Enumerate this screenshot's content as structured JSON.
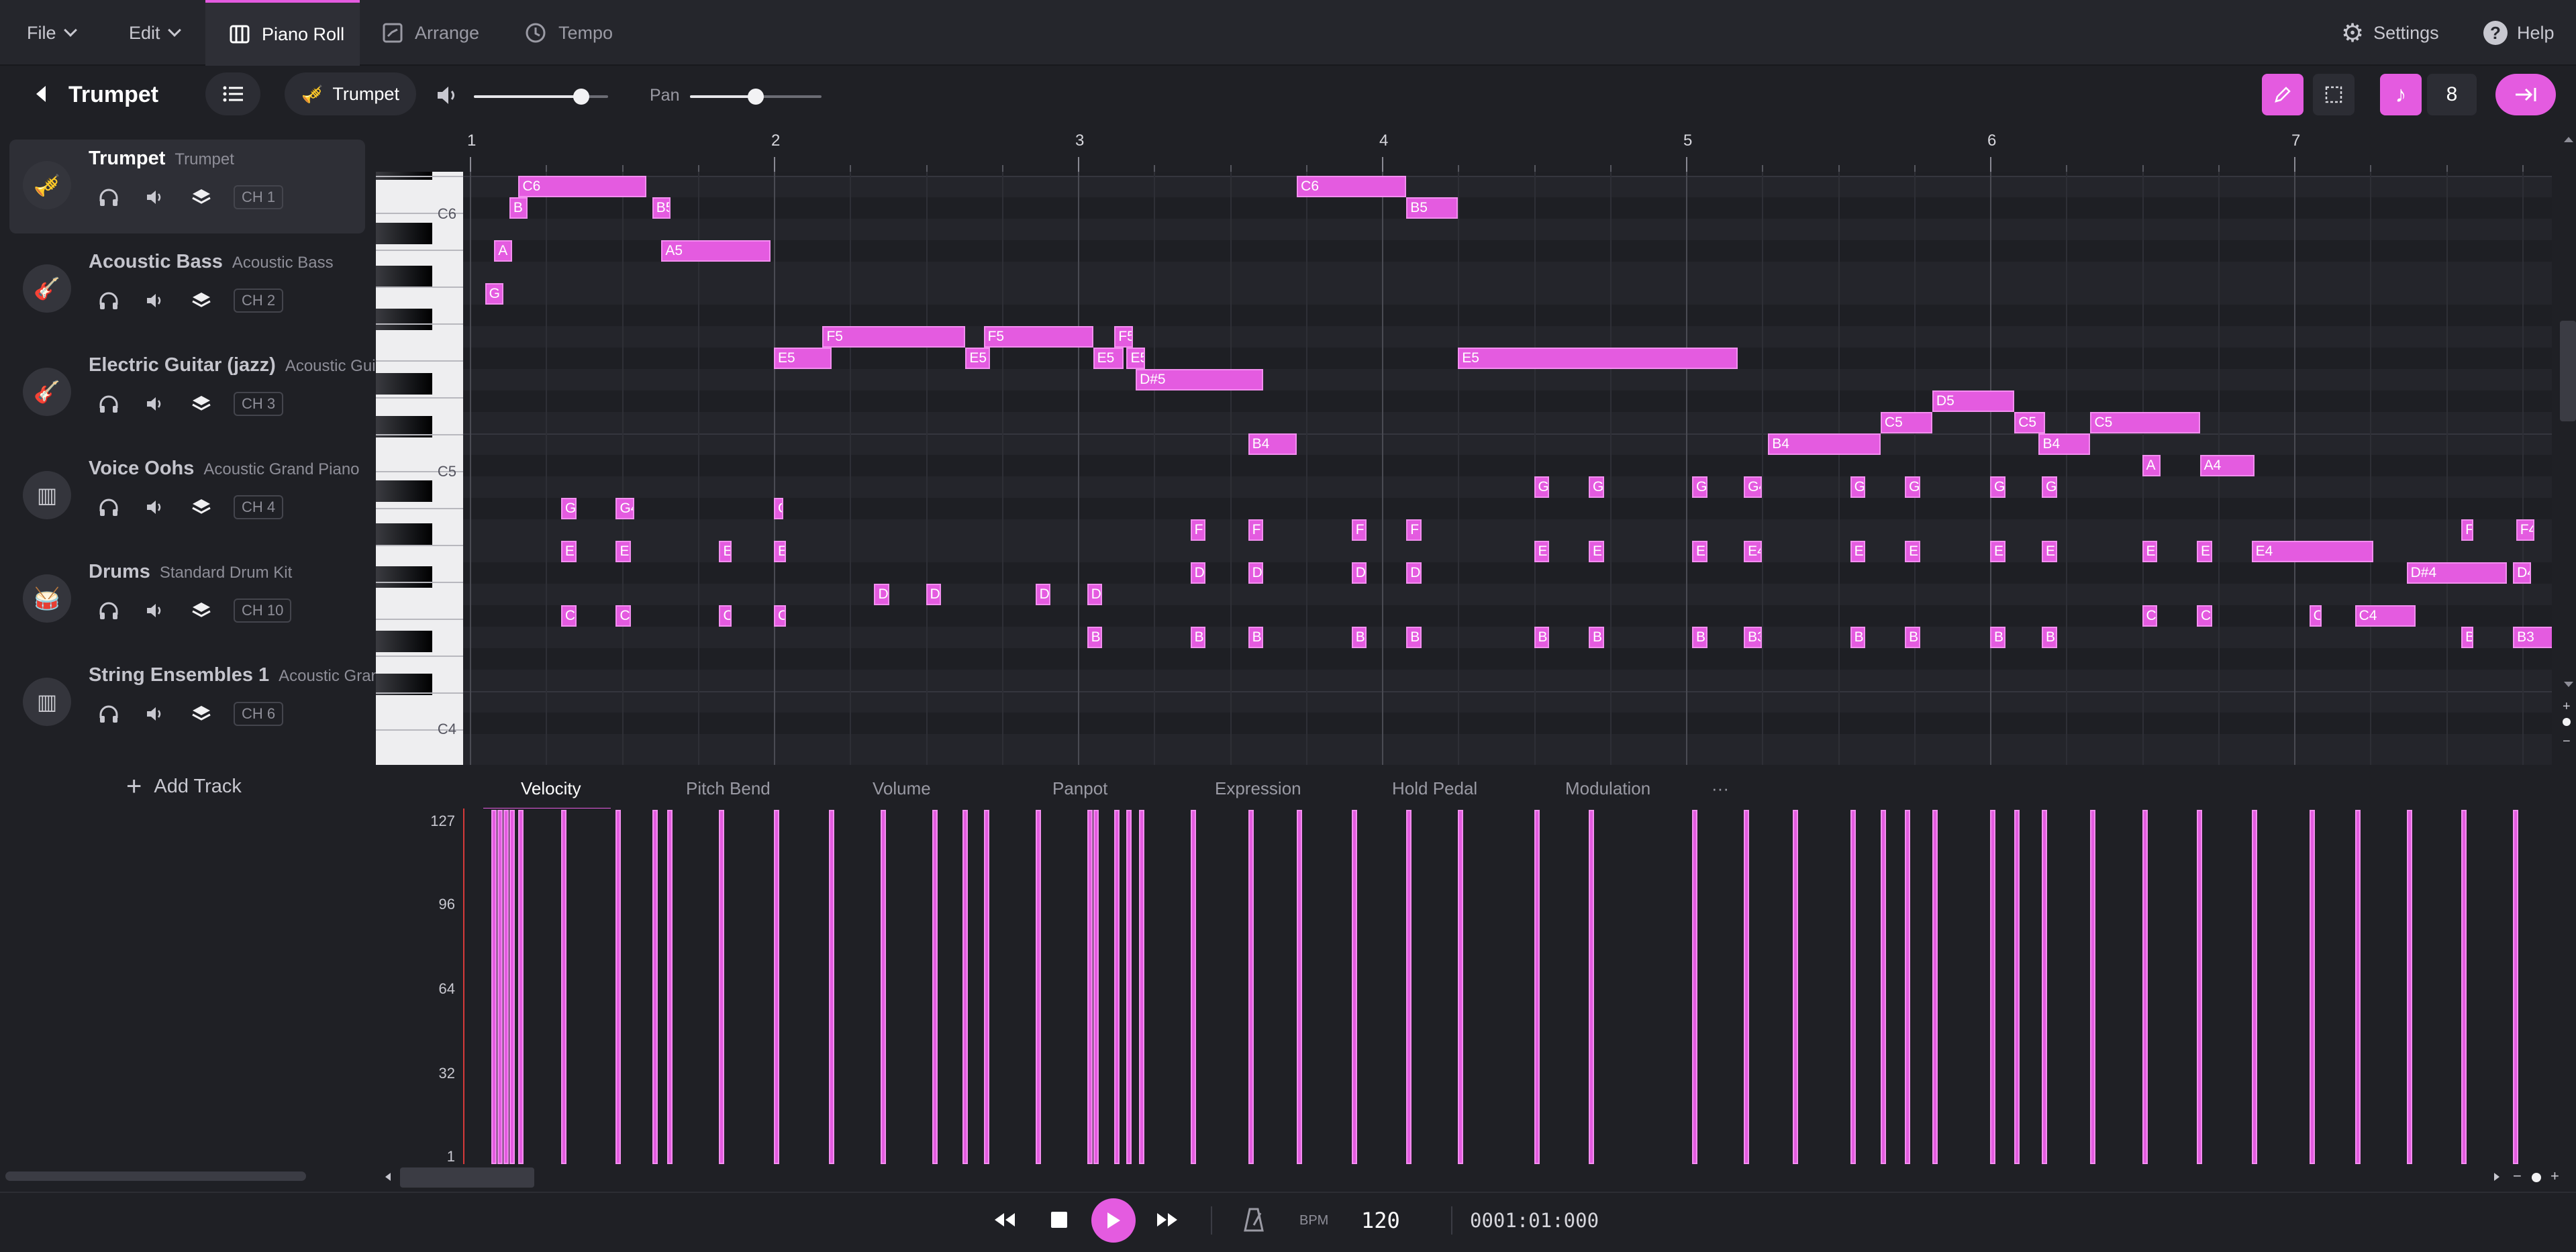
{
  "menu": {
    "file": "File",
    "edit": "Edit"
  },
  "tabs": [
    {
      "label": "Piano Roll",
      "active": true
    },
    {
      "label": "Arrange",
      "active": false
    },
    {
      "label": "Tempo",
      "active": false
    }
  ],
  "right_menu": {
    "settings": "Settings",
    "help": "Help"
  },
  "header": {
    "track_title": "Trumpet",
    "instrument_pill": "Trumpet",
    "volume_level": 0.8,
    "pan_label": "Pan",
    "pan_level": 0.5,
    "quantize_value": "8"
  },
  "tracks": [
    {
      "name": "Trumpet",
      "instrument": "Trumpet",
      "channel": "CH 1",
      "icon": "trumpet-icon",
      "selected": true
    },
    {
      "name": "Acoustic Bass",
      "instrument": "Acoustic Bass",
      "channel": "CH 2",
      "icon": "guitar-icon",
      "selected": false
    },
    {
      "name": "Electric Guitar (jazz)",
      "instrument": "Acoustic Gui",
      "channel": "CH 3",
      "icon": "guitar-icon",
      "selected": false
    },
    {
      "name": "Voice Oohs",
      "instrument": "Acoustic Grand Piano",
      "channel": "CH 4",
      "icon": "piano-icon",
      "selected": false
    },
    {
      "name": "Drums",
      "instrument": "Standard Drum Kit",
      "channel": "CH 10",
      "icon": "drum-icon",
      "selected": false
    },
    {
      "name": "String Ensembles 1",
      "instrument": "Acoustic Gran",
      "channel": "CH 6",
      "icon": "piano-icon",
      "selected": false
    }
  ],
  "add_track": "Add Track",
  "ruler": {
    "bars": [
      "1",
      "2",
      "3",
      "4",
      "5",
      "6",
      "7"
    ]
  },
  "key_labels": {
    "c6": "C6",
    "c5": "C5",
    "c4": "C4"
  },
  "notes": [
    {
      "label": "C6",
      "row": 1,
      "start": 1.16,
      "len": 0.42
    },
    {
      "label": "B",
      "row": 2,
      "start": 1.13,
      "len": 0.06
    },
    {
      "label": "B5",
      "row": 2,
      "start": 1.6,
      "len": 0.06
    },
    {
      "label": "A",
      "row": 4,
      "start": 1.08,
      "len": 0.06
    },
    {
      "label": "A5",
      "row": 4,
      "start": 1.63,
      "len": 0.36
    },
    {
      "label": "G",
      "row": 6,
      "start": 1.05,
      "len": 0.06
    },
    {
      "label": "F5",
      "row": 8,
      "start": 2.16,
      "len": 0.47
    },
    {
      "label": "F5",
      "row": 8,
      "start": 2.69,
      "len": 0.36
    },
    {
      "label": "F5",
      "row": 8,
      "start": 3.12,
      "len": 0.06
    },
    {
      "label": "E5",
      "row": 9,
      "start": 2.0,
      "len": 0.19
    },
    {
      "label": "E5",
      "row": 9,
      "start": 2.63,
      "len": 0.08
    },
    {
      "label": "E5",
      "row": 9,
      "start": 3.05,
      "len": 0.1
    },
    {
      "label": "E5",
      "row": 9,
      "start": 3.16,
      "len": 0.06
    },
    {
      "label": "E5",
      "row": 9,
      "start": 4.25,
      "len": 0.92
    },
    {
      "label": "D#5",
      "row": 10,
      "start": 3.19,
      "len": 0.42
    },
    {
      "label": "C6",
      "row": 1,
      "start": 3.72,
      "len": 0.36
    },
    {
      "label": "B5",
      "row": 2,
      "start": 4.08,
      "len": 0.17
    },
    {
      "label": "D5",
      "row": 11,
      "start": 5.81,
      "len": 0.27
    },
    {
      "label": "C5",
      "row": 12,
      "start": 5.64,
      "len": 0.17
    },
    {
      "label": "C5",
      "row": 12,
      "start": 6.08,
      "len": 0.1
    },
    {
      "label": "C5",
      "row": 12,
      "start": 6.33,
      "len": 0.36
    },
    {
      "label": "B4",
      "row": 13,
      "start": 3.56,
      "len": 0.16
    },
    {
      "label": "B4",
      "row": 13,
      "start": 5.27,
      "len": 0.37
    },
    {
      "label": "B4",
      "row": 13,
      "start": 6.16,
      "len": 0.17
    },
    {
      "label": "A",
      "row": 14,
      "start": 6.5,
      "len": 0.06
    },
    {
      "label": "A4",
      "row": 14,
      "start": 6.69,
      "len": 0.18
    },
    {
      "label": "G",
      "row": 15,
      "start": 4.5,
      "len": 0.05
    },
    {
      "label": "G",
      "row": 15,
      "start": 4.68,
      "len": 0.05
    },
    {
      "label": "G",
      "row": 15,
      "start": 5.02,
      "len": 0.05
    },
    {
      "label": "G4",
      "row": 15,
      "start": 5.19,
      "len": 0.06
    },
    {
      "label": "G",
      "row": 15,
      "start": 5.54,
      "len": 0.05
    },
    {
      "label": "G",
      "row": 15,
      "start": 5.72,
      "len": 0.05
    },
    {
      "label": "G",
      "row": 15,
      "start": 6.0,
      "len": 0.05
    },
    {
      "label": "G",
      "row": 15,
      "start": 6.17,
      "len": 0.05
    },
    {
      "label": "G",
      "row": 16,
      "start": 1.3,
      "len": 0.05
    },
    {
      "label": "G4",
      "row": 16,
      "start": 1.48,
      "len": 0.06
    },
    {
      "label": "G",
      "row": 16,
      "start": 2.0,
      "len": 0.03
    },
    {
      "label": "F",
      "row": 17,
      "start": 3.37,
      "len": 0.05
    },
    {
      "label": "F",
      "row": 17,
      "start": 3.56,
      "len": 0.05
    },
    {
      "label": "F",
      "row": 17,
      "start": 3.9,
      "len": 0.05
    },
    {
      "label": "F",
      "row": 17,
      "start": 4.08,
      "len": 0.05
    },
    {
      "label": "F",
      "row": 17,
      "start": 7.55,
      "len": 0.04
    },
    {
      "label": "F4",
      "row": 17,
      "start": 7.73,
      "len": 0.06
    },
    {
      "label": "E",
      "row": 18,
      "start": 1.3,
      "len": 0.05
    },
    {
      "label": "E",
      "row": 18,
      "start": 1.48,
      "len": 0.05
    },
    {
      "label": "E",
      "row": 18,
      "start": 1.82,
      "len": 0.04
    },
    {
      "label": "E",
      "row": 18,
      "start": 2.0,
      "len": 0.04
    },
    {
      "label": "E",
      "row": 18,
      "start": 4.5,
      "len": 0.05
    },
    {
      "label": "E",
      "row": 18,
      "start": 4.68,
      "len": 0.05
    },
    {
      "label": "E",
      "row": 18,
      "start": 5.02,
      "len": 0.05
    },
    {
      "label": "E4",
      "row": 18,
      "start": 5.19,
      "len": 0.06
    },
    {
      "label": "E",
      "row": 18,
      "start": 5.54,
      "len": 0.05
    },
    {
      "label": "E",
      "row": 18,
      "start": 5.72,
      "len": 0.05
    },
    {
      "label": "E",
      "row": 18,
      "start": 6.0,
      "len": 0.05
    },
    {
      "label": "E",
      "row": 18,
      "start": 6.17,
      "len": 0.05
    },
    {
      "label": "E",
      "row": 18,
      "start": 6.5,
      "len": 0.05
    },
    {
      "label": "E",
      "row": 18,
      "start": 6.68,
      "len": 0.05
    },
    {
      "label": "E4",
      "row": 18,
      "start": 6.86,
      "len": 0.4
    },
    {
      "label": "D",
      "row": 19,
      "start": 3.37,
      "len": 0.05
    },
    {
      "label": "D",
      "row": 19,
      "start": 3.56,
      "len": 0.05
    },
    {
      "label": "D",
      "row": 19,
      "start": 3.9,
      "len": 0.05
    },
    {
      "label": "D",
      "row": 19,
      "start": 4.08,
      "len": 0.05
    },
    {
      "label": "D#4",
      "row": 19,
      "start": 7.37,
      "len": 0.33
    },
    {
      "label": "D4",
      "row": 19,
      "start": 7.72,
      "len": 0.06
    },
    {
      "label": "D",
      "row": 20,
      "start": 2.33,
      "len": 0.05
    },
    {
      "label": "D",
      "row": 20,
      "start": 2.5,
      "len": 0.05
    },
    {
      "label": "D",
      "row": 20,
      "start": 2.86,
      "len": 0.05
    },
    {
      "label": "D",
      "row": 20,
      "start": 3.03,
      "len": 0.05
    },
    {
      "label": "C",
      "row": 21,
      "start": 1.3,
      "len": 0.05
    },
    {
      "label": "C",
      "row": 21,
      "start": 1.48,
      "len": 0.05
    },
    {
      "label": "C",
      "row": 21,
      "start": 1.82,
      "len": 0.04
    },
    {
      "label": "C",
      "row": 21,
      "start": 2.0,
      "len": 0.04
    },
    {
      "label": "C",
      "row": 21,
      "start": 6.5,
      "len": 0.05
    },
    {
      "label": "C",
      "row": 21,
      "start": 6.68,
      "len": 0.05
    },
    {
      "label": "C",
      "row": 21,
      "start": 7.05,
      "len": 0.04
    },
    {
      "label": "C4",
      "row": 21,
      "start": 7.2,
      "len": 0.2
    },
    {
      "label": "B",
      "row": 22,
      "start": 3.03,
      "len": 0.05
    },
    {
      "label": "B",
      "row": 22,
      "start": 3.37,
      "len": 0.05
    },
    {
      "label": "B",
      "row": 22,
      "start": 3.56,
      "len": 0.05
    },
    {
      "label": "B",
      "row": 22,
      "start": 3.9,
      "len": 0.05
    },
    {
      "label": "B",
      "row": 22,
      "start": 4.08,
      "len": 0.05
    },
    {
      "label": "B",
      "row": 22,
      "start": 4.5,
      "len": 0.05
    },
    {
      "label": "B",
      "row": 22,
      "start": 4.68,
      "len": 0.05
    },
    {
      "label": "B",
      "row": 22,
      "start": 5.02,
      "len": 0.05
    },
    {
      "label": "B3",
      "row": 22,
      "start": 5.19,
      "len": 0.06
    },
    {
      "label": "B",
      "row": 22,
      "start": 5.54,
      "len": 0.05
    },
    {
      "label": "B",
      "row": 22,
      "start": 5.72,
      "len": 0.05
    },
    {
      "label": "B",
      "row": 22,
      "start": 6.0,
      "len": 0.05
    },
    {
      "label": "B",
      "row": 22,
      "start": 6.17,
      "len": 0.05
    },
    {
      "label": "B",
      "row": 22,
      "start": 7.55,
      "len": 0.04
    },
    {
      "label": "B3",
      "row": 22,
      "start": 7.72,
      "len": 0.14
    }
  ],
  "lanes": {
    "tabs": [
      "Velocity",
      "Pitch Bend",
      "Volume",
      "Panpot",
      "Expression",
      "Hold Pedal",
      "Modulation"
    ],
    "more": "···",
    "axis": [
      "127",
      "96",
      "64",
      "32",
      "1"
    ]
  },
  "velocity_positions": [
    1.07,
    1.09,
    1.11,
    1.13,
    1.16,
    1.3,
    1.48,
    1.6,
    1.65,
    1.82,
    2.0,
    2.18,
    2.35,
    2.52,
    2.62,
    2.69,
    2.86,
    3.03,
    3.05,
    3.12,
    3.16,
    3.2,
    3.37,
    3.56,
    3.72,
    3.9,
    4.08,
    4.25,
    4.5,
    4.68,
    5.02,
    5.19,
    5.35,
    5.54,
    5.64,
    5.72,
    5.81,
    6.0,
    6.08,
    6.17,
    6.33,
    6.5,
    6.68,
    6.86,
    7.05,
    7.2,
    7.37,
    7.55,
    7.72
  ],
  "transport": {
    "bpm_label": "BPM",
    "bpm_value": "120",
    "position": "0001:01:000"
  },
  "colors": {
    "accent": "#e45be0",
    "background": "#1f2025",
    "panel": "#25262c"
  }
}
